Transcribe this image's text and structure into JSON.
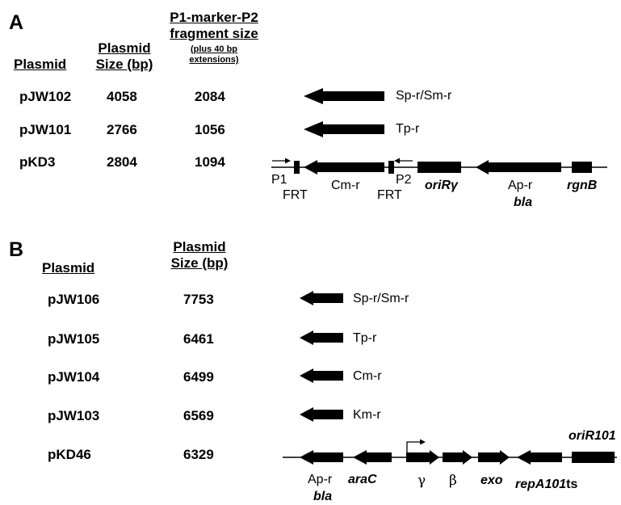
{
  "panel_a": {
    "letter": "A",
    "headers": {
      "plasmid": "Plasmid",
      "size_line1": "Plasmid",
      "size_line2": "Size (bp)",
      "frag_line1": "P1-marker-P2",
      "frag_line2": "fragment size",
      "frag_note1": "(plus 40 bp",
      "frag_note2": "extensions)"
    },
    "rows": [
      {
        "plasmid": "pJW102",
        "size": "4058",
        "fragment": "2084",
        "marker": "Sp-r/Sm-r"
      },
      {
        "plasmid": "pJW101",
        "size": "2766",
        "fragment": "1056",
        "marker": "Tp-r"
      },
      {
        "plasmid": "pKD3",
        "size": "2804",
        "fragment": "1094"
      }
    ],
    "map_labels": {
      "p1": "P1",
      "frt1": "FRT",
      "cmr": "Cm-r",
      "frt2": "FRT",
      "p2": "P2",
      "ori": "oriRγ",
      "apr": "Ap-r",
      "bla": "bla",
      "rgnb": "rgnB"
    }
  },
  "panel_b": {
    "letter": "B",
    "headers": {
      "plasmid": "Plasmid",
      "size_line1": "Plasmid",
      "size_line2": "Size (bp)"
    },
    "rows": [
      {
        "plasmid": "pJW106",
        "size": "7753",
        "marker": "Sp-r/Sm-r"
      },
      {
        "plasmid": "pJW105",
        "size": "6461",
        "marker": "Tp-r"
      },
      {
        "plasmid": "pJW104",
        "size": "6499",
        "marker": "Cm-r"
      },
      {
        "plasmid": "pJW103",
        "size": "6569",
        "marker": "Km-r"
      },
      {
        "plasmid": "pKD46",
        "size": "6329"
      }
    ],
    "map_labels": {
      "apr": "Ap-r",
      "bla": "bla",
      "arac": "araC",
      "gamma": "γ",
      "beta": "β",
      "exo": "exo",
      "repa": "repA101",
      "repa_ts": "ts",
      "ori": "oriR101"
    }
  }
}
